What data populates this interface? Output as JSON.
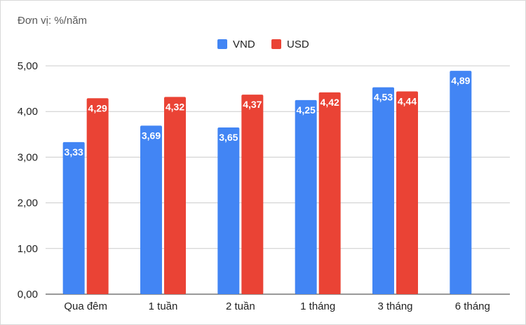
{
  "chart_data": {
    "type": "bar",
    "unit_label": "Đơn vị: %/năm",
    "categories": [
      "Qua đêm",
      "1 tuần",
      "2 tuần",
      "1 tháng",
      "3 tháng",
      "6 tháng"
    ],
    "series": [
      {
        "name": "VND",
        "color": "#4285f4",
        "values": [
          3.33,
          3.69,
          3.65,
          4.25,
          4.53,
          4.89
        ],
        "labels": [
          "3,33",
          "3,69",
          "3,65",
          "4,25",
          "4,53",
          "4,89"
        ]
      },
      {
        "name": "USD",
        "color": "#ea4335",
        "values": [
          4.29,
          4.32,
          4.37,
          4.42,
          4.44,
          null
        ],
        "labels": [
          "4,29",
          "4,32",
          "4,37",
          "4,42",
          "4,44",
          null
        ]
      }
    ],
    "yticks": [
      0,
      1,
      2,
      3,
      4,
      5
    ],
    "ytick_labels": [
      "0,00",
      "1,00",
      "2,00",
      "3,00",
      "4,00",
      "5,00"
    ],
    "ylim": [
      0,
      5
    ],
    "legend_position": "top-center",
    "grid": true
  }
}
